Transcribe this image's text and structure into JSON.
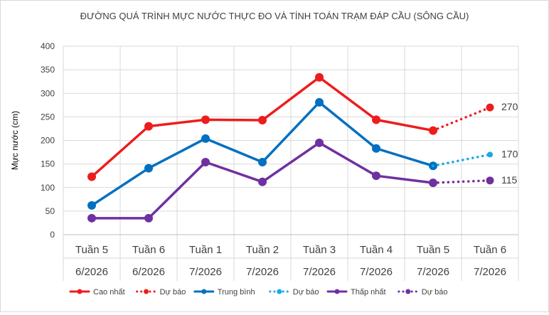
{
  "chart_data": {
    "type": "line",
    "title": "ĐƯỜNG QUÁ TRÌNH MỰC NƯỚC THỰC ĐO VÀ TÍNH TOÁN TRẠM ĐÁP CẦU (SÔNG CẦU)",
    "xlabel": "",
    "ylabel": "Mực nước (cm)",
    "ylim": [
      0,
      400
    ],
    "yticks": [
      "0",
      "50",
      "100",
      "150",
      "200",
      "250",
      "300",
      "350",
      "400"
    ],
    "categories": [
      {
        "week": "Tuần 5",
        "month": "6/2026"
      },
      {
        "week": "Tuần 6",
        "month": "6/2026"
      },
      {
        "week": "Tuần 1",
        "month": "7/2026"
      },
      {
        "week": "Tuần 2",
        "month": "7/2026"
      },
      {
        "week": "Tuần 3",
        "month": "7/2026"
      },
      {
        "week": "Tuần 4",
        "month": "7/2026"
      },
      {
        "week": "Tuần 5",
        "month": "7/2026"
      },
      {
        "week": "Tuần 6",
        "month": "7/2026"
      }
    ],
    "grid": true,
    "legend_position": "bottom",
    "series": [
      {
        "name": "Cao nhất",
        "color": "#ee1c1c",
        "style": "solid",
        "values": [
          123,
          230,
          244,
          243,
          334,
          244,
          221,
          null
        ]
      },
      {
        "name": "Dự báo",
        "color": "#ee1c1c",
        "style": "dotted",
        "values": [
          null,
          null,
          null,
          null,
          null,
          null,
          221,
          270
        ]
      },
      {
        "name": "Trung bình",
        "color": "#0070c0",
        "style": "solid",
        "values": [
          62,
          141,
          204,
          154,
          281,
          183,
          146,
          null
        ]
      },
      {
        "name": "Dự báo",
        "color": "#19a9e8",
        "style": "dotted",
        "values": [
          null,
          null,
          null,
          null,
          null,
          null,
          146,
          170
        ]
      },
      {
        "name": "Thấp nhất",
        "color": "#7030a0",
        "style": "solid",
        "values": [
          35,
          35,
          154,
          112,
          195,
          125,
          110,
          null
        ]
      },
      {
        "name": "Dự báo",
        "color": "#7030a0",
        "style": "dotted",
        "values": [
          null,
          null,
          null,
          null,
          null,
          null,
          110,
          115
        ]
      }
    ],
    "annotations": [
      {
        "text": "270",
        "category_index": 7,
        "value": 270
      },
      {
        "text": "170",
        "category_index": 7,
        "value": 170
      },
      {
        "text": "115",
        "category_index": 7,
        "value": 115
      }
    ]
  }
}
